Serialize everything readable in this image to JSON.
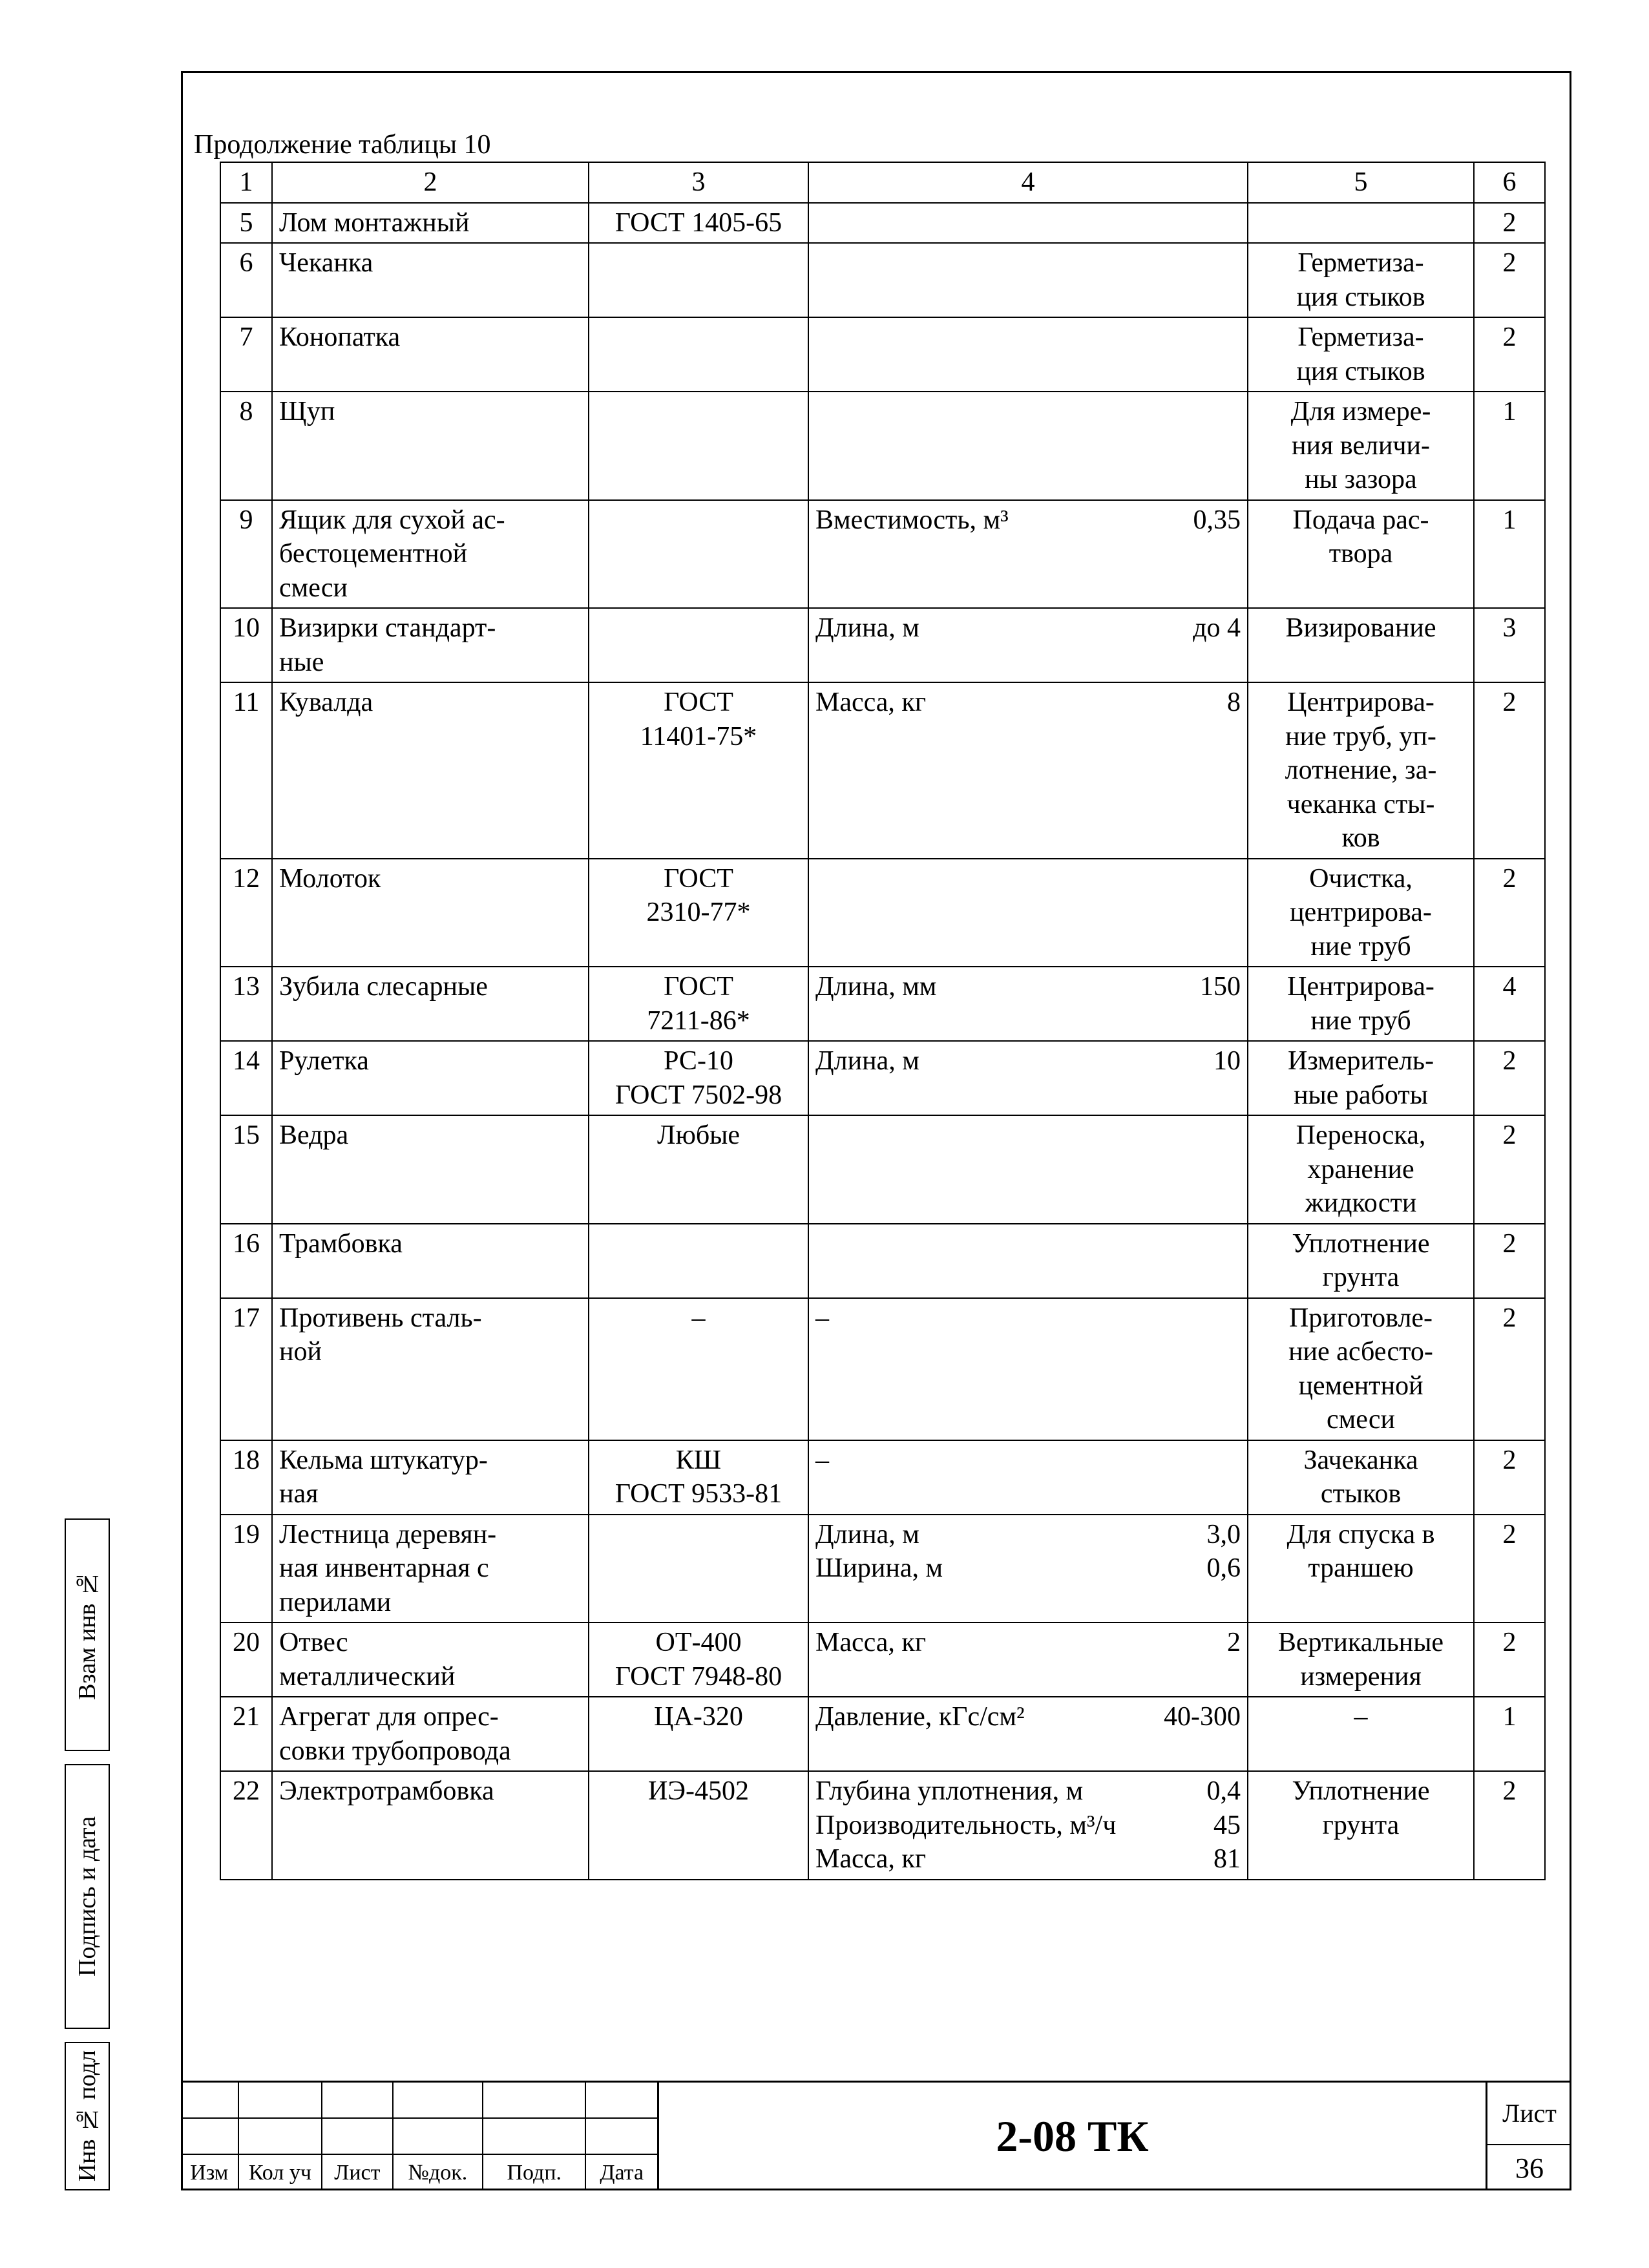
{
  "caption": "Продолжение таблицы 10",
  "columns": [
    "1",
    "2",
    "3",
    "4",
    "5",
    "6"
  ],
  "rows": [
    {
      "n": "5",
      "name": "Лом монтажный",
      "gost": "ГОСТ 1405-65",
      "spec": [],
      "purpose": "",
      "qty": "2"
    },
    {
      "n": "6",
      "name": "Чеканка",
      "gost": "",
      "spec": [],
      "purpose": "Герметиза-\nция стыков",
      "qty": "2"
    },
    {
      "n": "7",
      "name": "Конопатка",
      "gost": "",
      "spec": [],
      "purpose": "Герметиза-\nция стыков",
      "qty": "2"
    },
    {
      "n": "8",
      "name": "Щуп",
      "gost": "",
      "spec": [],
      "purpose": "Для измере-\nния величи-\nны зазора",
      "qty": "1"
    },
    {
      "n": "9",
      "name": "Ящик для сухой ас-\nбестоцементной\nсмеси",
      "gost": "",
      "spec": [
        {
          "l": "Вместимость, м³",
          "v": "0,35"
        }
      ],
      "purpose": "Подача рас-\nтвора",
      "qty": "1"
    },
    {
      "n": "10",
      "name": "Визирки стандарт-\nные",
      "gost": "",
      "spec": [
        {
          "l": "Длина, м",
          "v": "до 4"
        }
      ],
      "purpose": "Визирование",
      "qty": "3"
    },
    {
      "n": "11",
      "name": "Кувалда",
      "gost": "ГОСТ\n11401-75*",
      "spec": [
        {
          "l": "Масса, кг",
          "v": "8"
        }
      ],
      "purpose": "Центрирова-\nние труб, уп-\nлотнение, за-\nчеканка сты-\nков",
      "qty": "2"
    },
    {
      "n": "12",
      "name": "Молоток",
      "gost": "ГОСТ\n2310-77*",
      "spec": [],
      "purpose": "Очистка,\nцентрирова-\nние труб",
      "qty": "2"
    },
    {
      "n": "13",
      "name": "Зубила слесарные",
      "gost": "ГОСТ\n7211-86*",
      "spec": [
        {
          "l": "Длина, мм",
          "v": "150"
        }
      ],
      "purpose": "Центрирова-\nние труб",
      "qty": "4"
    },
    {
      "n": "14",
      "name": "Рулетка",
      "gost": "РС-10\nГОСТ 7502-98",
      "spec": [
        {
          "l": "Длина, м",
          "v": "10"
        }
      ],
      "purpose": "Измеритель-\nные работы",
      "qty": "2"
    },
    {
      "n": "15",
      "name": "Ведра",
      "gost": "Любые",
      "spec": [],
      "purpose": "Переноска,\nхранение\nжидкости",
      "qty": "2"
    },
    {
      "n": "16",
      "name": "Трамбовка",
      "gost": "",
      "spec": [],
      "purpose": "Уплотнение\nгрунта",
      "qty": "2"
    },
    {
      "n": "17",
      "name": "Противень сталь-\nной",
      "gost": "–",
      "spec": [
        {
          "l": "–",
          "v": ""
        }
      ],
      "purpose": "Приготовле-\nние асбесто-\nцементной\nсмеси",
      "qty": "2"
    },
    {
      "n": "18",
      "name": "Кельма штукатур-\nная",
      "gost": "КШ\nГОСТ 9533-81",
      "spec": [
        {
          "l": "–",
          "v": ""
        }
      ],
      "purpose": "Зачеканка\nстыков",
      "qty": "2"
    },
    {
      "n": "19",
      "name": "Лестница деревян-\nная инвентарная с\nперилами",
      "gost": "",
      "spec": [
        {
          "l": "Длина, м",
          "v": "3,0"
        },
        {
          "l": "Ширина, м",
          "v": "0,6"
        }
      ],
      "purpose": "Для спуска в\nтраншею",
      "qty": "2"
    },
    {
      "n": "20",
      "name": "Отвес\nметаллический",
      "gost": "ОТ-400\nГОСТ 7948-80",
      "spec": [
        {
          "l": "Масса, кг",
          "v": "2"
        }
      ],
      "purpose": "Вертикальные\nизмерения",
      "qty": "2"
    },
    {
      "n": "21",
      "name": "Агрегат для опрес-\nсовки трубопровода",
      "gost": "ЦА-320",
      "spec": [
        {
          "l": "Давление, кГс/см²",
          "v": "40-300"
        }
      ],
      "purpose": "–",
      "qty": "1"
    },
    {
      "n": "22",
      "name": "Электротрамбовка",
      "gost": "ИЭ-4502",
      "spec": [
        {
          "l": "Глубина уплотнения, м",
          "v": "0,4"
        },
        {
          "l": "Производительность, м³/ч",
          "v": "45"
        },
        {
          "l": "Масса, кг",
          "v": "81"
        }
      ],
      "purpose": "Уплотнение\nгрунта",
      "qty": "2"
    }
  ],
  "sidebar": {
    "s1": "Взам инв №",
    "s2": "Подпись и дата",
    "s3": "Инв № подл"
  },
  "stamp": {
    "cols": [
      "Изм",
      "Кол уч",
      "Лист",
      "№док.",
      "Подп.",
      "Дата"
    ],
    "code": "2-08 ТК",
    "sheet_label": "Лист",
    "sheet_no": "36"
  }
}
